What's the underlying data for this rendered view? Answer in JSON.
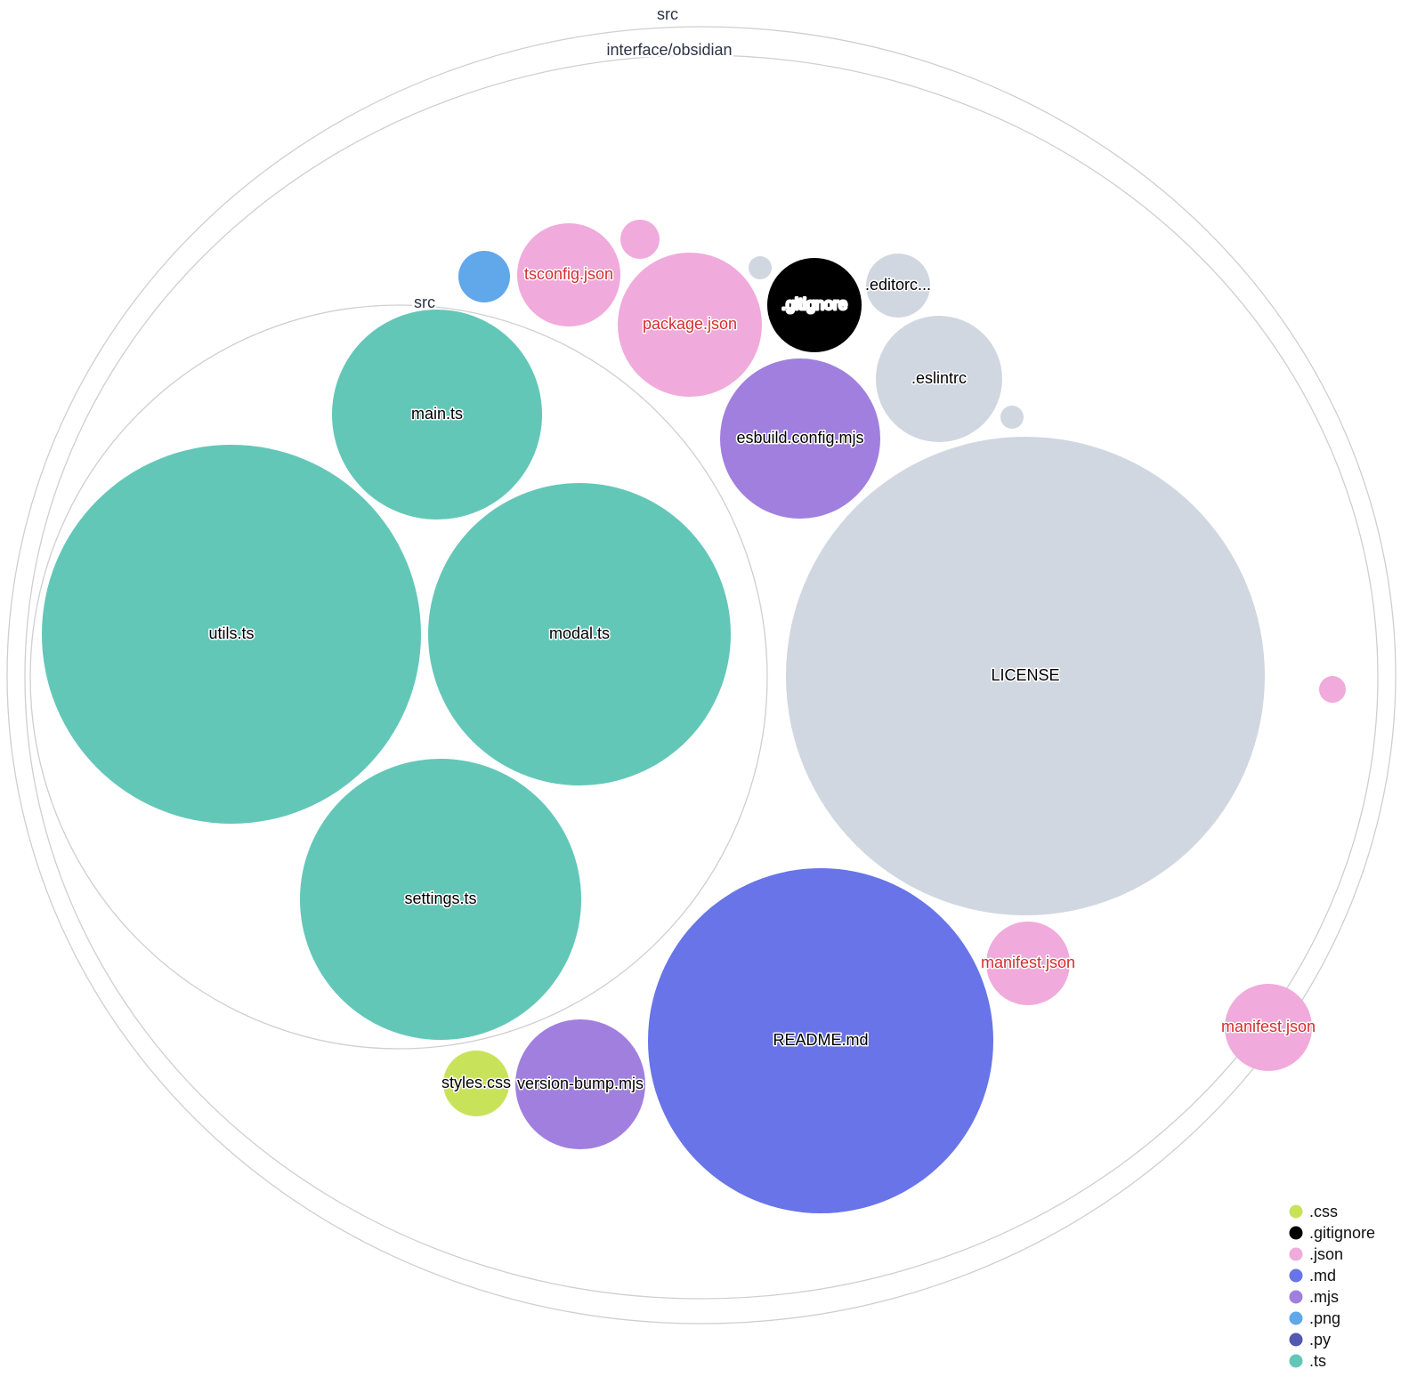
{
  "groups": [
    {
      "name": "src"
    },
    {
      "name": "interface/obsidian"
    },
    {
      "name": "src"
    }
  ],
  "files": [
    {
      "name": "main.ts",
      "ext": ".ts",
      "label": "main.ts"
    },
    {
      "name": "utils.ts",
      "ext": ".ts",
      "label": "utils.ts"
    },
    {
      "name": "modal.ts",
      "ext": ".ts",
      "label": "modal.ts"
    },
    {
      "name": "settings.ts",
      "ext": ".ts",
      "label": "settings.ts"
    },
    {
      "name": "LICENSE",
      "ext": "",
      "label": "LICENSE"
    },
    {
      "name": "README.md",
      "ext": ".md",
      "label": "README.md"
    },
    {
      "name": "esbuild.config.mjs",
      "ext": ".mjs",
      "label": "esbuild.config.mjs"
    },
    {
      "name": ".eslintrc",
      "ext": "",
      "label": ".eslintrc"
    },
    {
      "name": "",
      "ext": "",
      "label": ""
    },
    {
      "name": "package.json",
      "ext": ".json",
      "label": "package.json",
      "highlight": true
    },
    {
      "name": "tsconfig.json",
      "ext": ".json",
      "label": "tsconfig.json",
      "highlight": true
    },
    {
      "name": "",
      "ext": ".json",
      "label": ""
    },
    {
      "name": "",
      "ext": ".png",
      "label": ""
    },
    {
      "name": "",
      "ext": "",
      "label": ""
    },
    {
      "name": ".gitignore",
      "ext": ".gitignore",
      "label": ".gitignore"
    },
    {
      "name": ".editorc...",
      "ext": "",
      "label": ".editorc..."
    },
    {
      "name": "manifest.json",
      "ext": ".json",
      "label": "manifest.json",
      "highlight": true
    },
    {
      "name": "manifest.json",
      "ext": ".json",
      "label": "manifest.json",
      "highlight": true
    },
    {
      "name": "",
      "ext": ".json",
      "label": ""
    },
    {
      "name": "styles.css",
      "ext": ".css",
      "label": "styles.css"
    },
    {
      "name": "version-bump.mjs",
      "ext": ".mjs",
      "label": "version-bump.mjs"
    }
  ],
  "colors": {
    ".css": "#c8e35a",
    ".gitignore": "#000000",
    ".json": "#f0aadb",
    ".md": "#6874e8",
    ".mjs": "#a07fdf",
    ".png": "#60a8ea",
    ".py": "#5358b0",
    ".ts": "#63c7b8",
    "other": "#d1d7e0",
    "highlight_text": "#d62d2d"
  },
  "legend": [
    {
      "label": ".css",
      "color": "#c8e35a"
    },
    {
      "label": ".gitignore",
      "color": "#000000"
    },
    {
      "label": ".json",
      "color": "#f0aadb"
    },
    {
      "label": ".md",
      "color": "#6874e8"
    },
    {
      "label": ".mjs",
      "color": "#a07fdf"
    },
    {
      "label": ".png",
      "color": "#60a8ea"
    },
    {
      "label": ".py",
      "color": "#5358b0"
    },
    {
      "label": ".ts",
      "color": "#63c7b8"
    }
  ]
}
